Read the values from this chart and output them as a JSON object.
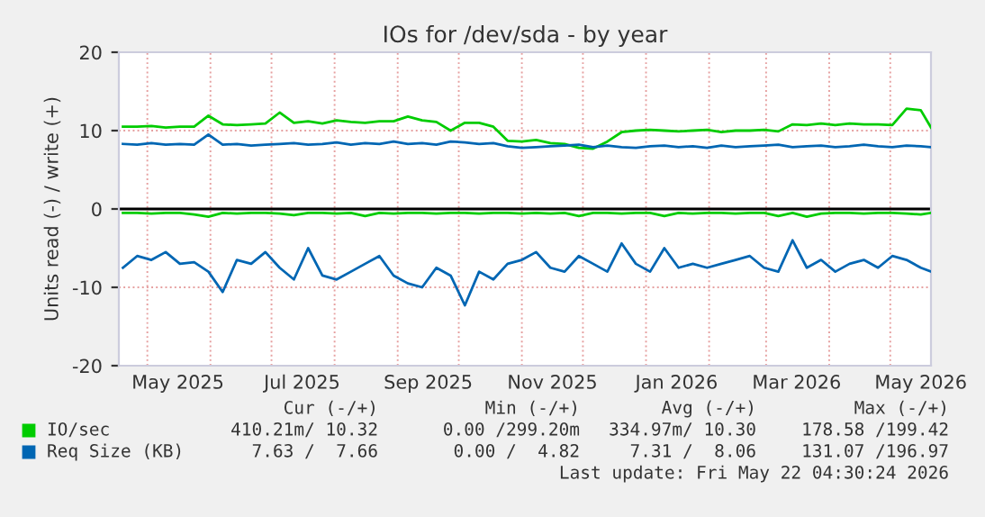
{
  "chart_data": {
    "type": "line",
    "title": "IOs for /dev/sda - by year",
    "ylabel": "Units read (-) / write (+)",
    "x": [
      "2025-04-19",
      "2025-04-26",
      "2025-05-03",
      "2025-05-10",
      "2025-05-17",
      "2025-05-24",
      "2025-05-31",
      "2025-06-07",
      "2025-06-14",
      "2025-06-21",
      "2025-06-28",
      "2025-07-05",
      "2025-07-12",
      "2025-07-19",
      "2025-07-26",
      "2025-08-02",
      "2025-08-09",
      "2025-08-16",
      "2025-08-23",
      "2025-08-30",
      "2025-09-06",
      "2025-09-13",
      "2025-09-20",
      "2025-09-27",
      "2025-10-04",
      "2025-10-11",
      "2025-10-18",
      "2025-10-25",
      "2025-11-01",
      "2025-11-08",
      "2025-11-15",
      "2025-11-22",
      "2025-11-29",
      "2025-12-06",
      "2025-12-13",
      "2025-12-20",
      "2025-12-27",
      "2026-01-03",
      "2026-01-10",
      "2026-01-17",
      "2026-01-24",
      "2026-01-31",
      "2026-02-07",
      "2026-02-14",
      "2026-02-21",
      "2026-02-28",
      "2026-03-07",
      "2026-03-14",
      "2026-03-21",
      "2026-03-28",
      "2026-04-04",
      "2026-04-11",
      "2026-04-18",
      "2026-04-25",
      "2026-05-02",
      "2026-05-09",
      "2026-05-16",
      "2026-05-21"
    ],
    "series": [
      {
        "name": "IO/sec",
        "color": "#00cc00",
        "values": [
          10.5,
          10.5,
          10.6,
          10.4,
          10.5,
          10.5,
          11.9,
          10.8,
          10.7,
          10.8,
          10.9,
          12.3,
          11.0,
          11.2,
          10.9,
          11.3,
          11.1,
          11.0,
          11.2,
          11.2,
          11.8,
          11.3,
          11.1,
          10.0,
          11.0,
          11.0,
          10.5,
          8.7,
          8.6,
          8.8,
          8.4,
          8.3,
          7.8,
          7.7,
          8.6,
          9.8,
          10.0,
          10.1,
          10.0,
          9.9,
          10.0,
          10.1,
          9.8,
          10.0,
          10.0,
          10.1,
          9.9,
          10.8,
          10.7,
          10.9,
          10.7,
          10.9,
          10.8,
          10.8,
          10.7,
          12.8,
          12.6,
          10.4
        ]
      },
      {
        "color": "#00cc00",
        "values": [
          -0.5,
          -0.5,
          -0.6,
          -0.5,
          -0.5,
          -0.7,
          -1.0,
          -0.5,
          -0.6,
          -0.5,
          -0.5,
          -0.6,
          -0.8,
          -0.5,
          -0.5,
          -0.6,
          -0.5,
          -0.9,
          -0.5,
          -0.6,
          -0.5,
          -0.5,
          -0.6,
          -0.5,
          -0.5,
          -0.6,
          -0.5,
          -0.5,
          -0.6,
          -0.5,
          -0.6,
          -0.5,
          -0.9,
          -0.5,
          -0.5,
          -0.6,
          -0.5,
          -0.5,
          -0.9,
          -0.5,
          -0.6,
          -0.5,
          -0.5,
          -0.6,
          -0.5,
          -0.5,
          -0.9,
          -0.5,
          -1.0,
          -0.6,
          -0.5,
          -0.5,
          -0.6,
          -0.5,
          -0.5,
          -0.6,
          -0.7,
          -0.5
        ]
      },
      {
        "name": "Req Size (KB)",
        "color": "#0066b3",
        "values": [
          8.3,
          8.2,
          8.4,
          8.2,
          8.3,
          8.2,
          9.5,
          8.2,
          8.3,
          8.1,
          8.2,
          8.3,
          8.4,
          8.2,
          8.3,
          8.5,
          8.2,
          8.4,
          8.3,
          8.6,
          8.3,
          8.4,
          8.2,
          8.6,
          8.5,
          8.3,
          8.4,
          8.0,
          7.8,
          7.9,
          8.0,
          8.1,
          8.2,
          7.9,
          8.1,
          7.9,
          7.8,
          8.0,
          8.1,
          7.9,
          8.0,
          7.8,
          8.1,
          7.9,
          8.0,
          8.1,
          8.2,
          7.9,
          8.0,
          8.1,
          7.9,
          8.0,
          8.2,
          8.0,
          7.9,
          8.1,
          8.0,
          7.9
        ]
      },
      {
        "color": "#0066b3",
        "values": [
          -7.5,
          -6.0,
          -6.5,
          -5.5,
          -7.0,
          -6.8,
          -8.0,
          -10.6,
          -6.5,
          -7.0,
          -5.5,
          -7.5,
          -9.0,
          -5.0,
          -8.5,
          -9.0,
          -8.0,
          -7.0,
          -6.0,
          -8.5,
          -9.5,
          -10.0,
          -7.5,
          -8.5,
          -12.3,
          -8.0,
          -9.0,
          -7.0,
          -6.5,
          -5.5,
          -7.5,
          -8.0,
          -6.0,
          -7.0,
          -8.0,
          -4.4,
          -7.0,
          -8.0,
          -5.0,
          -7.5,
          -7.0,
          -7.5,
          -7.0,
          -6.5,
          -6.0,
          -7.5,
          -8.0,
          -4.0,
          -7.5,
          -6.5,
          -8.0,
          -7.0,
          -6.5,
          -7.5,
          -6.0,
          -6.5,
          -7.5,
          -8.0
        ]
      }
    ],
    "xlim": [
      "2025-04-17",
      "2026-05-21"
    ],
    "xticks": [
      {
        "value": "2025-05-01",
        "label": null
      },
      {
        "value": "2025-05-16",
        "label": "May 2025"
      },
      {
        "value": "2025-06-01",
        "label": null
      },
      {
        "value": "2025-07-01",
        "label": null
      },
      {
        "value": "2025-07-16",
        "label": "Jul 2025"
      },
      {
        "value": "2025-08-01",
        "label": null
      },
      {
        "value": "2025-09-01",
        "label": null
      },
      {
        "value": "2025-09-16",
        "label": "Sep 2025"
      },
      {
        "value": "2025-10-01",
        "label": null
      },
      {
        "value": "2025-11-01",
        "label": null
      },
      {
        "value": "2025-11-16",
        "label": "Nov 2025"
      },
      {
        "value": "2025-12-01",
        "label": null
      },
      {
        "value": "2026-01-01",
        "label": null
      },
      {
        "value": "2026-01-16",
        "label": "Jan 2026"
      },
      {
        "value": "2026-02-01",
        "label": null
      },
      {
        "value": "2026-03-01",
        "label": null
      },
      {
        "value": "2026-03-16",
        "label": "Mar 2026"
      },
      {
        "value": "2026-04-01",
        "label": null
      },
      {
        "value": "2026-05-01",
        "label": null
      },
      {
        "value": "2026-05-16",
        "label": "May 2026"
      }
    ],
    "ylim": [
      -20,
      20
    ],
    "yticks": [
      -20,
      -10,
      0,
      10,
      20
    ],
    "ref_lines": [
      {
        "axis": "y",
        "value": 0,
        "color": "#000000"
      }
    ],
    "grid": true,
    "legend": "bottom",
    "marker": "none",
    "line_style": "solid",
    "annotations": [
      "Cur (-/+)",
      "Min (-/+)",
      "Avg (-/+)",
      "Max (-/+)",
      "410.21m/ 10.32",
      "0.00 /299.20m",
      "334.97m/ 10.30",
      "178.58 /199.42",
      "7.63 /  7.66",
      "0.00 /  4.82",
      "7.31 /  8.06",
      "131.07 /196.97",
      "Last update: Fri May 22 04:30:24 2026"
    ]
  }
}
